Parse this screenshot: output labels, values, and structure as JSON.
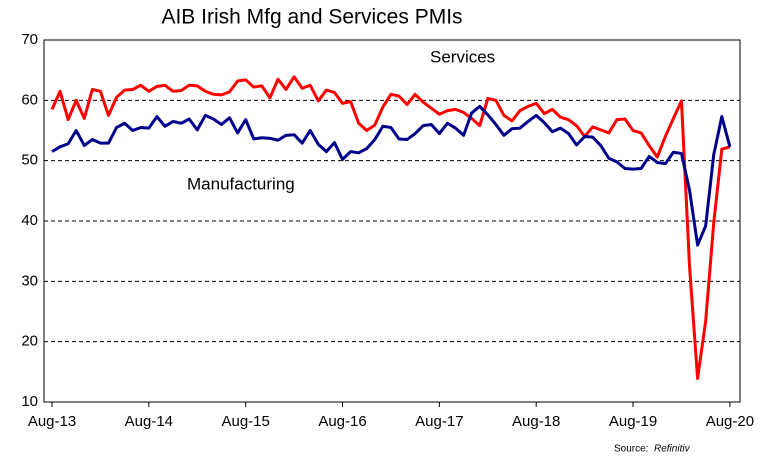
{
  "chart_data": {
    "type": "line",
    "title": "AIB Irish Mfg and Services PMIs",
    "annotations": [
      {
        "text": "Services",
        "series": 0
      },
      {
        "text": "Manufacturing",
        "series": 1
      }
    ],
    "source_label": "Source:",
    "source": "Refinitiv",
    "categories": [
      "Aug-13",
      null,
      null,
      null,
      null,
      null,
      null,
      null,
      null,
      null,
      null,
      null,
      "Aug-14",
      null,
      null,
      null,
      null,
      null,
      null,
      null,
      null,
      null,
      null,
      null,
      "Aug-15",
      null,
      null,
      null,
      null,
      null,
      null,
      null,
      null,
      null,
      null,
      null,
      "Aug-16",
      null,
      null,
      null,
      null,
      null,
      null,
      null,
      null,
      null,
      null,
      null,
      "Aug-17",
      null,
      null,
      null,
      null,
      null,
      null,
      null,
      null,
      null,
      null,
      null,
      "Aug-18",
      null,
      null,
      null,
      null,
      null,
      null,
      null,
      null,
      null,
      null,
      null,
      "Aug-19",
      null,
      null,
      null,
      null,
      null,
      null,
      null,
      null,
      null,
      null,
      null,
      "Aug-20"
    ],
    "series": [
      {
        "name": "Services",
        "color": "#ff0000",
        "values": [
          58.5,
          61.5,
          56.8,
          60.0,
          57.0,
          61.8,
          61.5,
          57.5,
          60.5,
          61.7,
          61.8,
          62.5,
          61.5,
          62.3,
          62.5,
          61.5,
          61.6,
          62.5,
          62.4,
          61.5,
          61.0,
          60.9,
          61.4,
          63.2,
          63.4,
          62.2,
          62.4,
          60.4,
          63.5,
          61.8,
          63.9,
          62.0,
          62.5,
          59.9,
          61.7,
          61.3,
          59.5,
          59.8,
          56.2,
          55.0,
          55.9,
          58.9,
          61.0,
          60.7,
          59.3,
          61.0,
          59.7,
          58.7,
          57.7,
          58.3,
          58.5,
          58.0,
          57.0,
          55.8,
          60.3,
          60.0,
          57.5,
          56.6,
          58.3,
          59.0,
          59.5,
          57.8,
          58.5,
          57.2,
          56.8,
          55.8,
          54.0,
          55.6,
          55.1,
          54.6,
          56.8,
          56.9,
          55.0,
          54.6,
          52.5,
          50.6,
          54.0,
          57.0,
          59.9,
          32.5,
          13.9,
          23.4,
          39.7,
          51.9,
          52.3
        ]
      },
      {
        "name": "Manufacturing",
        "color": "#00008b",
        "values": [
          51.5,
          52.3,
          52.8,
          55.0,
          52.5,
          53.5,
          52.9,
          52.9,
          55.5,
          56.2,
          55.0,
          55.5,
          55.4,
          57.3,
          55.7,
          56.5,
          56.2,
          56.9,
          55.1,
          57.5,
          56.9,
          56.0,
          57.1,
          54.6,
          56.8,
          53.6,
          53.8,
          53.7,
          53.4,
          54.2,
          54.3,
          52.9,
          55.0,
          52.7,
          51.5,
          53.0,
          50.2,
          51.5,
          51.3,
          52.0,
          53.5,
          55.7,
          55.5,
          53.6,
          53.5,
          54.5,
          55.8,
          56.0,
          54.5,
          56.2,
          55.4,
          54.2,
          57.9,
          59.0,
          57.6,
          56.0,
          54.2,
          55.3,
          55.4,
          56.5,
          57.5,
          56.3,
          54.8,
          55.4,
          54.5,
          52.6,
          54.0,
          53.9,
          52.5,
          50.4,
          49.8,
          48.7,
          48.6,
          48.7,
          50.7,
          49.7,
          49.5,
          51.4,
          51.2,
          45.1,
          36.0,
          39.2,
          51.0,
          57.3,
          52.3
        ]
      }
    ],
    "ylim": [
      10,
      70
    ],
    "yticks": [
      10,
      20,
      30,
      40,
      50,
      60,
      70
    ],
    "grid": true
  }
}
